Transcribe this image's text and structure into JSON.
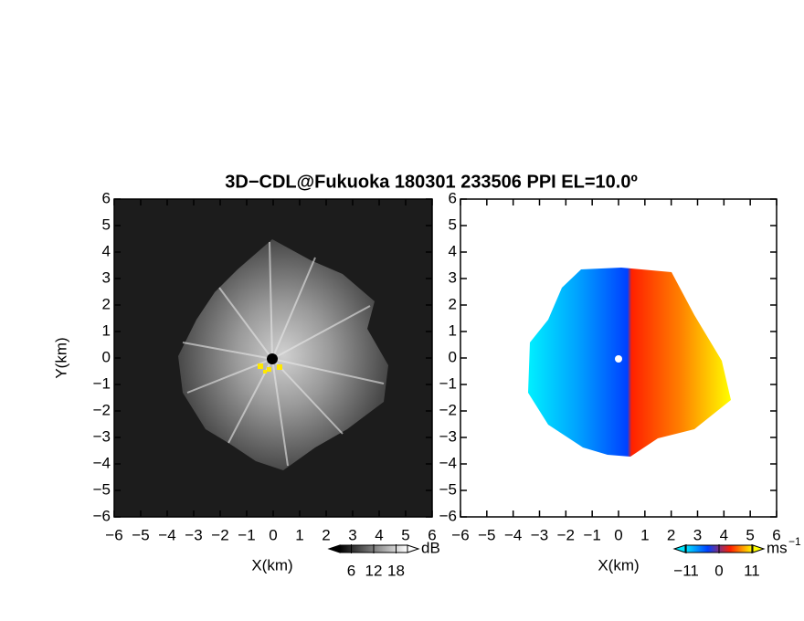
{
  "title": "3D−CDL@Fukuoka 180301 233506 PPI EL=10.0º",
  "chart_data": [
    {
      "type": "heatmap",
      "xlabel": "X(km)",
      "ylabel": "Y(km)",
      "xlim": [
        -6,
        6
      ],
      "ylim": [
        -6,
        6
      ],
      "xticks": [
        {
          "value": -6,
          "label": "−6"
        },
        {
          "value": -5,
          "label": "−5"
        },
        {
          "value": -4,
          "label": "−4"
        },
        {
          "value": -3,
          "label": "−3"
        },
        {
          "value": -2,
          "label": "−2"
        },
        {
          "value": -1,
          "label": "−1"
        },
        0,
        1,
        2,
        3,
        4,
        5,
        6
      ],
      "yticks": [
        {
          "value": -6,
          "label": "−6"
        },
        {
          "value": -5,
          "label": "−5"
        },
        {
          "value": -4,
          "label": "−4"
        },
        {
          "value": -3,
          "label": "−3"
        },
        {
          "value": -2,
          "label": "−2"
        },
        {
          "value": -1,
          "label": "−1"
        },
        0,
        1,
        2,
        3,
        4,
        5,
        6
      ],
      "colorbar": {
        "unit": "dB",
        "clim": [
          0,
          24
        ],
        "ticks": [
          6,
          12,
          18
        ],
        "colors": [
          "#000000",
          "#ffffff"
        ]
      }
    },
    {
      "type": "heatmap",
      "xlabel": "X(km)",
      "xlim": [
        -6,
        6
      ],
      "ylim": [
        -6,
        6
      ],
      "xticks": [
        {
          "value": -6,
          "label": "−6"
        },
        {
          "value": -5,
          "label": "−5"
        },
        {
          "value": -4,
          "label": "−4"
        },
        {
          "value": -3,
          "label": "−3"
        },
        {
          "value": -2,
          "label": "−2"
        },
        {
          "value": -1,
          "label": "−1"
        },
        0,
        1,
        2,
        3,
        4,
        5,
        6
      ],
      "yticks": [
        {
          "value": -6,
          "label": "−6"
        },
        {
          "value": -5,
          "label": "−5"
        },
        {
          "value": -4,
          "label": "−4"
        },
        {
          "value": -3,
          "label": "−3"
        },
        {
          "value": -2,
          "label": "−2"
        },
        {
          "value": -1,
          "label": "−1"
        },
        0,
        1,
        2,
        3,
        4,
        5,
        6
      ],
      "colorbar": {
        "unit": "ms",
        "unit_exponent": "−1",
        "clim": [
          -15,
          15
        ],
        "ticks": [
          {
            "value": -11,
            "label": "−11"
          },
          0,
          11
        ],
        "colors": [
          "#00e8ff",
          "#0040ff",
          "#ff2000",
          "#ffff00"
        ]
      }
    }
  ]
}
